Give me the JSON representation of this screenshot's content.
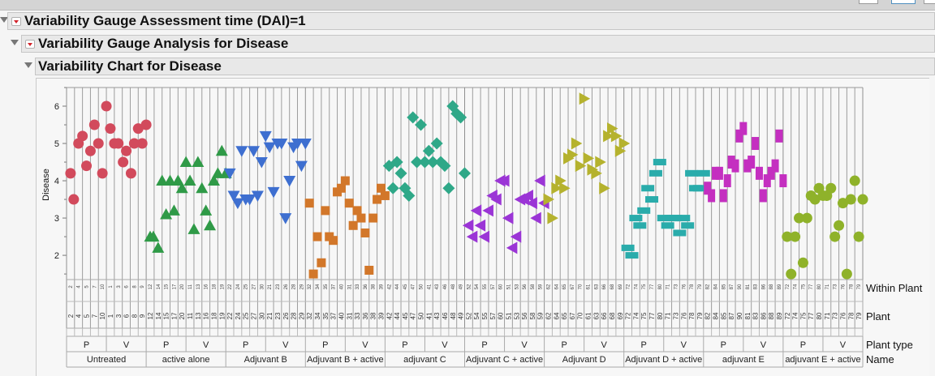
{
  "window": {
    "outline_titles": [
      "Variability Gauge Assessment time (DAI)=1",
      "Variability Gauge Analysis for Disease",
      "Variability Chart for Disease"
    ]
  },
  "axis_labels": {
    "y": "Disease",
    "row_within_plant": "Within Plant",
    "row_plant": "Plant",
    "row_plant_type": "Plant type",
    "row_name": "Name"
  },
  "chart_data": {
    "type": "scatter",
    "title": "Variability Chart for Disease",
    "xlabel": "Name / Plant type / Plant / Within Plant",
    "ylabel": "Disease",
    "ylim": [
      1.35,
      6.5
    ],
    "yticks": [
      2,
      3,
      4,
      5,
      6
    ],
    "grid": "vertical lines per plant",
    "groups": [
      {
        "name": "Untreated",
        "color": "#d24a5c",
        "marker": "circle",
        "P": {
          "plants": [
            "2",
            "4",
            "5",
            "7",
            "10"
          ]
        },
        "V": {
          "plants": [
            "1",
            "3",
            "6",
            "8",
            "9"
          ]
        },
        "points": [
          [
            0,
            4.2
          ],
          [
            0.4,
            3.5
          ],
          [
            1,
            5.0
          ],
          [
            1.5,
            5.2
          ],
          [
            2,
            4.4
          ],
          [
            2.5,
            4.8
          ],
          [
            3,
            5.5
          ],
          [
            3.5,
            5.0
          ],
          [
            4,
            4.2
          ],
          [
            4.5,
            6.0
          ],
          [
            5,
            5.4
          ],
          [
            5.5,
            5.0
          ],
          [
            6,
            5.0
          ],
          [
            6.6,
            4.5
          ],
          [
            7,
            4.8
          ],
          [
            7.6,
            4.2
          ],
          [
            8,
            5.0
          ],
          [
            8.5,
            5.4
          ],
          [
            9,
            5.0
          ],
          [
            9.5,
            5.5
          ]
        ]
      },
      {
        "name": "active alone",
        "color": "#2f9a47",
        "marker": "triangle-up",
        "P": {
          "plants": [
            "12",
            "14",
            "15",
            "17",
            "20"
          ]
        },
        "V": {
          "plants": [
            "11",
            "13",
            "16",
            "18",
            "19"
          ]
        },
        "points": [
          [
            0,
            2.5
          ],
          [
            0.4,
            2.5
          ],
          [
            1,
            2.2
          ],
          [
            1.5,
            4.0
          ],
          [
            2,
            3.1
          ],
          [
            2.5,
            4.0
          ],
          [
            3,
            3.2
          ],
          [
            3.5,
            4.0
          ],
          [
            4,
            3.8
          ],
          [
            4.5,
            4.5
          ],
          [
            5,
            4.0
          ],
          [
            5.5,
            2.7
          ],
          [
            6,
            4.5
          ],
          [
            6.5,
            3.8
          ],
          [
            7,
            3.2
          ],
          [
            7.5,
            2.8
          ],
          [
            8,
            4.0
          ],
          [
            8.5,
            4.2
          ],
          [
            9,
            4.8
          ],
          [
            9.5,
            4.2
          ]
        ]
      },
      {
        "name": "Adjuvant B",
        "color": "#3e6fd0",
        "marker": "triangle-down",
        "P": {
          "plants": [
            "22",
            "24",
            "25",
            "27",
            "30"
          ]
        },
        "V": {
          "plants": [
            "21",
            "23",
            "26",
            "28",
            "29"
          ]
        },
        "points": [
          [
            0,
            4.2
          ],
          [
            0.5,
            3.6
          ],
          [
            1,
            3.4
          ],
          [
            1.5,
            4.8
          ],
          [
            2,
            3.5
          ],
          [
            2.5,
            3.5
          ],
          [
            3,
            4.8
          ],
          [
            3.5,
            3.6
          ],
          [
            4,
            4.5
          ],
          [
            4.5,
            5.2
          ],
          [
            5,
            4.9
          ],
          [
            5.5,
            3.7
          ],
          [
            6,
            5.0
          ],
          [
            6.5,
            5.0
          ],
          [
            7,
            3.0
          ],
          [
            7.5,
            4.0
          ],
          [
            8,
            4.9
          ],
          [
            8.5,
            5.0
          ],
          [
            9,
            4.4
          ],
          [
            9.5,
            5.0
          ]
        ]
      },
      {
        "name": "Adjuvant B + active",
        "color": "#d2772a",
        "marker": "square",
        "P": {
          "plants": [
            "32",
            "34",
            "35",
            "37",
            "40"
          ]
        },
        "V": {
          "plants": [
            "31",
            "33",
            "36",
            "38",
            "39"
          ]
        },
        "points": [
          [
            0,
            3.4
          ],
          [
            0.5,
            1.5
          ],
          [
            1,
            2.5
          ],
          [
            1.5,
            1.8
          ],
          [
            2,
            3.2
          ],
          [
            2.5,
            2.5
          ],
          [
            3,
            2.4
          ],
          [
            3.5,
            3.7
          ],
          [
            4,
            3.8
          ],
          [
            4.5,
            4.0
          ],
          [
            5,
            3.4
          ],
          [
            5.5,
            2.8
          ],
          [
            6,
            3.2
          ],
          [
            6.5,
            3.0
          ],
          [
            7,
            2.6
          ],
          [
            7.5,
            1.6
          ],
          [
            8,
            3.0
          ],
          [
            8.5,
            3.5
          ],
          [
            9,
            3.8
          ],
          [
            9.5,
            3.6
          ]
        ]
      },
      {
        "name": "adjuvant C",
        "color": "#2fa888",
        "marker": "diamond",
        "P": {
          "plants": [
            "42",
            "44",
            "45",
            "47",
            "50"
          ]
        },
        "V": {
          "plants": [
            "41",
            "43",
            "46",
            "48",
            "49"
          ]
        },
        "points": [
          [
            0,
            4.4
          ],
          [
            0.5,
            3.8
          ],
          [
            1,
            4.5
          ],
          [
            1.5,
            4.2
          ],
          [
            2,
            3.8
          ],
          [
            2.5,
            3.6
          ],
          [
            3,
            5.7
          ],
          [
            3.5,
            4.5
          ],
          [
            4,
            5.5
          ],
          [
            4.5,
            4.5
          ],
          [
            5,
            4.8
          ],
          [
            5.5,
            4.5
          ],
          [
            6,
            5.0
          ],
          [
            6.5,
            4.5
          ],
          [
            7,
            4.4
          ],
          [
            7.5,
            3.8
          ],
          [
            8,
            6.0
          ],
          [
            8.5,
            5.8
          ],
          [
            9,
            5.7
          ],
          [
            9.5,
            4.2
          ]
        ]
      },
      {
        "name": "Adjuvant C + active",
        "color": "#9b35d6",
        "marker": "triangle-left",
        "P": {
          "plants": [
            "52",
            "54",
            "55",
            "57",
            "60"
          ]
        },
        "V": {
          "plants": [
            "51",
            "53",
            "56",
            "58",
            "59"
          ]
        },
        "points": [
          [
            0,
            2.8
          ],
          [
            0.5,
            2.5
          ],
          [
            1,
            3.2
          ],
          [
            1.5,
            2.8
          ],
          [
            2,
            2.5
          ],
          [
            2.5,
            3.2
          ],
          [
            3,
            3.6
          ],
          [
            3.5,
            3.5
          ],
          [
            4,
            4.0
          ],
          [
            4.5,
            4.0
          ],
          [
            5,
            3.0
          ],
          [
            5.5,
            2.2
          ],
          [
            6,
            2.5
          ],
          [
            6.5,
            3.5
          ],
          [
            7,
            3.5
          ],
          [
            7.5,
            3.6
          ],
          [
            8,
            3.4
          ],
          [
            8.5,
            3.0
          ],
          [
            9,
            4.0
          ],
          [
            9.5,
            3.4
          ]
        ]
      },
      {
        "name": "Adjuvant D",
        "color": "#b5b22e",
        "marker": "triangle-right",
        "P": {
          "plants": [
            "62",
            "64",
            "65",
            "67",
            "70"
          ]
        },
        "V": {
          "plants": [
            "61",
            "63",
            "66",
            "68",
            "69"
          ]
        },
        "points": [
          [
            0,
            3.5
          ],
          [
            0.5,
            3.0
          ],
          [
            1,
            3.8
          ],
          [
            1.5,
            4.0
          ],
          [
            2,
            3.8
          ],
          [
            2.5,
            4.6
          ],
          [
            3,
            4.7
          ],
          [
            3.5,
            5.0
          ],
          [
            4,
            4.4
          ],
          [
            4.5,
            6.2
          ],
          [
            5,
            4.6
          ],
          [
            5.5,
            4.3
          ],
          [
            6,
            4.2
          ],
          [
            6.5,
            4.5
          ],
          [
            7,
            3.8
          ],
          [
            7.5,
            5.2
          ],
          [
            8,
            5.4
          ],
          [
            8.5,
            5.2
          ],
          [
            9,
            4.8
          ],
          [
            9.5,
            5.0
          ]
        ]
      },
      {
        "name": "Adjuvant D + active",
        "color": "#2aacab",
        "marker": "hbar",
        "P": {
          "plants": [
            "72",
            "74",
            "75",
            "77",
            "80"
          ]
        },
        "V": {
          "plants": [
            "71",
            "73",
            "76",
            "78",
            "79"
          ]
        },
        "points": [
          [
            0,
            2.2
          ],
          [
            0.5,
            2.0
          ],
          [
            1,
            3.0
          ],
          [
            1.5,
            2.8
          ],
          [
            2,
            3.2
          ],
          [
            2.5,
            3.8
          ],
          [
            3,
            3.5
          ],
          [
            3.5,
            4.2
          ],
          [
            4,
            4.5
          ],
          [
            4.5,
            3.0
          ],
          [
            5,
            2.8
          ],
          [
            5.5,
            3.0
          ],
          [
            6,
            3.0
          ],
          [
            6.5,
            2.6
          ],
          [
            7,
            3.0
          ],
          [
            7.5,
            2.8
          ],
          [
            8,
            4.2
          ],
          [
            8.5,
            3.8
          ],
          [
            9,
            3.8
          ],
          [
            9.5,
            4.2
          ]
        ]
      },
      {
        "name": "adjuvant E",
        "color": "#c42fc0",
        "marker": "vbar",
        "P": {
          "plants": [
            "82",
            "84",
            "85",
            "87",
            "90"
          ]
        },
        "V": {
          "plants": [
            "81",
            "83",
            "86",
            "88",
            "89"
          ]
        },
        "points": [
          [
            0,
            3.8
          ],
          [
            0.5,
            3.6
          ],
          [
            1,
            4.2
          ],
          [
            1.5,
            4.2
          ],
          [
            2,
            3.6
          ],
          [
            2.5,
            4.0
          ],
          [
            3,
            4.5
          ],
          [
            3.5,
            4.4
          ],
          [
            4,
            5.2
          ],
          [
            4.5,
            5.4
          ],
          [
            5,
            4.4
          ],
          [
            5.5,
            4.5
          ],
          [
            6,
            5.0
          ],
          [
            6.5,
            4.2
          ],
          [
            7,
            3.6
          ],
          [
            7.5,
            4.0
          ],
          [
            8,
            4.2
          ],
          [
            8.5,
            4.4
          ],
          [
            9,
            5.2
          ],
          [
            9.5,
            4.0
          ]
        ]
      },
      {
        "name": "adjuvant E + active",
        "color": "#8fb22a",
        "marker": "circle",
        "P": {
          "plants": [
            "72",
            "74",
            "75",
            "77",
            "80"
          ]
        },
        "V": {
          "plants": [
            "71",
            "73",
            "76",
            "78",
            "79"
          ]
        },
        "points": [
          [
            0,
            2.5
          ],
          [
            0.5,
            1.5
          ],
          [
            1,
            2.5
          ],
          [
            1.5,
            3.0
          ],
          [
            2,
            1.8
          ],
          [
            2.5,
            3.0
          ],
          [
            3,
            3.6
          ],
          [
            3.5,
            3.5
          ],
          [
            4,
            3.8
          ],
          [
            4.5,
            3.6
          ],
          [
            5,
            3.6
          ],
          [
            5.5,
            3.8
          ],
          [
            6,
            2.5
          ],
          [
            6.5,
            2.8
          ],
          [
            7,
            3.4
          ],
          [
            7.5,
            1.5
          ],
          [
            8,
            3.5
          ],
          [
            8.5,
            4.0
          ],
          [
            9,
            2.5
          ],
          [
            9.5,
            3.5
          ]
        ]
      }
    ]
  }
}
